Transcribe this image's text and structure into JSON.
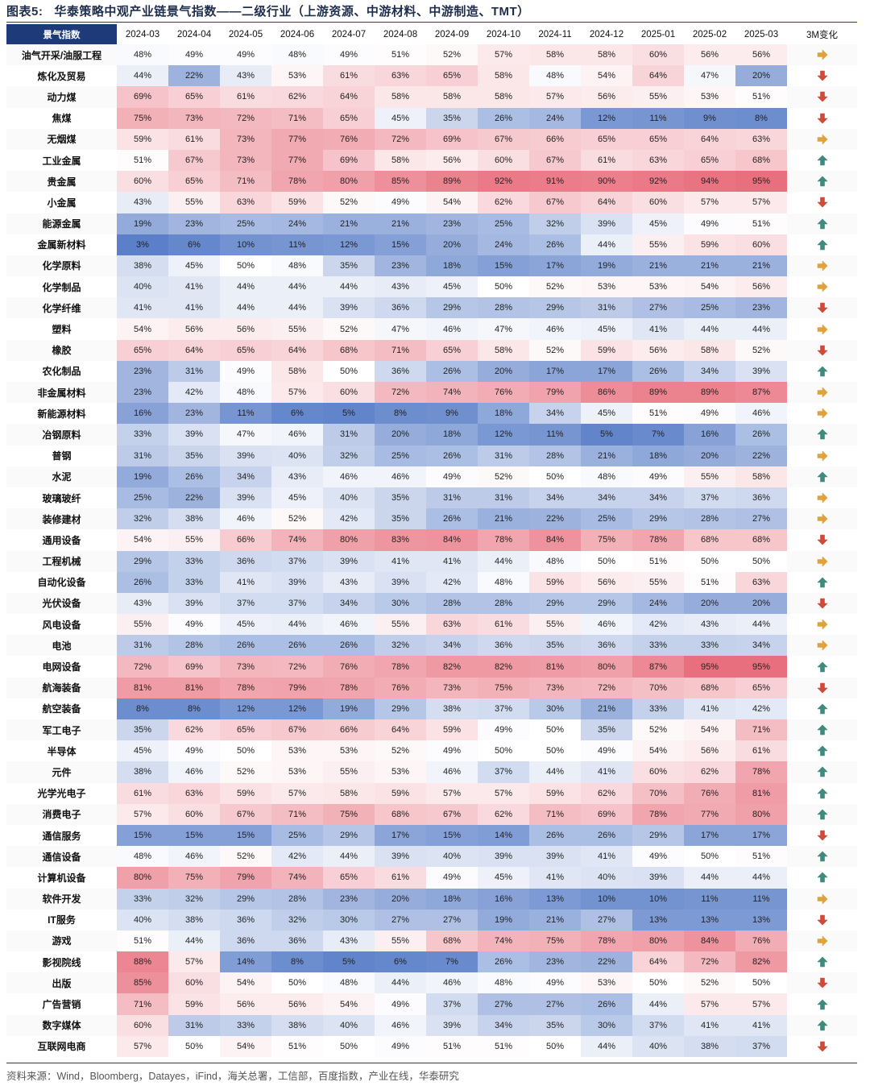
{
  "title": {
    "label": "图表5:",
    "text": "华泰策略中观产业链景气指数——二级行业（上游资源、中游材料、中游制造、TMT）"
  },
  "table": {
    "corner": "景气指数",
    "months": [
      "2024-03",
      "2024-04",
      "2024-05",
      "2024-06",
      "2024-07",
      "2024-08",
      "2024-09",
      "2024-10",
      "2024-11",
      "2024-12",
      "2025-01",
      "2025-02",
      "2025-03"
    ],
    "change_header": "3M变化",
    "colors": {
      "low": "#5b7fc8",
      "mid": "#ffffff",
      "high": "#e8707e",
      "up": "#3f8a7d",
      "down": "#cf4a38",
      "flat": "#e0a33a"
    },
    "rows": [
      {
        "name": "油气开采/油服工程",
        "values": [
          48,
          49,
          49,
          48,
          49,
          51,
          52,
          57,
          58,
          58,
          60,
          56,
          56
        ],
        "trend": "flat"
      },
      {
        "name": "炼化及贸易",
        "values": [
          44,
          22,
          43,
          53,
          61,
          63,
          65,
          58,
          48,
          54,
          64,
          47,
          20
        ],
        "trend": "down"
      },
      {
        "name": "动力煤",
        "values": [
          69,
          65,
          61,
          62,
          64,
          58,
          58,
          58,
          57,
          56,
          55,
          53,
          51
        ],
        "trend": "down"
      },
      {
        "name": "焦煤",
        "values": [
          75,
          73,
          72,
          71,
          65,
          45,
          35,
          26,
          24,
          12,
          11,
          9,
          8
        ],
        "trend": "down"
      },
      {
        "name": "无烟煤",
        "values": [
          59,
          61,
          73,
          77,
          76,
          72,
          69,
          67,
          66,
          65,
          65,
          64,
          63
        ],
        "trend": "flat"
      },
      {
        "name": "工业金属",
        "values": [
          51,
          67,
          73,
          77,
          69,
          58,
          56,
          60,
          67,
          61,
          63,
          65,
          68
        ],
        "trend": "up"
      },
      {
        "name": "贵金属",
        "values": [
          60,
          65,
          71,
          78,
          80,
          85,
          89,
          92,
          91,
          90,
          92,
          94,
          95
        ],
        "trend": "up"
      },
      {
        "name": "小金属",
        "values": [
          43,
          55,
          63,
          59,
          52,
          49,
          54,
          62,
          67,
          64,
          60,
          57,
          57
        ],
        "trend": "down"
      },
      {
        "name": "能源金属",
        "values": [
          19,
          23,
          25,
          24,
          21,
          21,
          23,
          25,
          32,
          39,
          45,
          49,
          51
        ],
        "trend": "up"
      },
      {
        "name": "金属新材料",
        "values": [
          3,
          6,
          10,
          11,
          12,
          15,
          20,
          24,
          26,
          44,
          55,
          59,
          60
        ],
        "trend": "up"
      },
      {
        "name": "化学原料",
        "values": [
          38,
          45,
          50,
          48,
          35,
          23,
          18,
          15,
          17,
          19,
          21,
          21,
          21
        ],
        "trend": "flat"
      },
      {
        "name": "化学制品",
        "values": [
          40,
          41,
          44,
          44,
          44,
          43,
          45,
          50,
          52,
          53,
          53,
          54,
          56
        ],
        "trend": "flat"
      },
      {
        "name": "化学纤维",
        "values": [
          41,
          41,
          44,
          44,
          39,
          36,
          29,
          28,
          29,
          31,
          27,
          25,
          23
        ],
        "trend": "down"
      },
      {
        "name": "塑料",
        "values": [
          54,
          56,
          56,
          55,
          52,
          47,
          46,
          47,
          46,
          45,
          41,
          44,
          44
        ],
        "trend": "flat"
      },
      {
        "name": "橡胶",
        "values": [
          65,
          64,
          65,
          64,
          68,
          71,
          65,
          58,
          52,
          59,
          56,
          58,
          52
        ],
        "trend": "down"
      },
      {
        "name": "农化制品",
        "values": [
          23,
          31,
          49,
          58,
          50,
          36,
          26,
          20,
          17,
          17,
          26,
          34,
          39
        ],
        "trend": "up"
      },
      {
        "name": "非金属材料",
        "values": [
          23,
          42,
          48,
          57,
          60,
          72,
          74,
          76,
          79,
          86,
          89,
          89,
          87
        ],
        "trend": "flat"
      },
      {
        "name": "新能源材料",
        "values": [
          16,
          23,
          11,
          6,
          5,
          8,
          9,
          18,
          34,
          45,
          51,
          49,
          46
        ],
        "trend": "flat"
      },
      {
        "name": "冶钢原料",
        "values": [
          33,
          39,
          47,
          46,
          31,
          20,
          18,
          12,
          11,
          5,
          7,
          16,
          26
        ],
        "trend": "up"
      },
      {
        "name": "普钢",
        "values": [
          31,
          35,
          39,
          40,
          32,
          25,
          26,
          31,
          28,
          21,
          18,
          20,
          22
        ],
        "trend": "flat"
      },
      {
        "name": "水泥",
        "values": [
          19,
          26,
          34,
          43,
          46,
          46,
          49,
          52,
          50,
          48,
          49,
          55,
          58
        ],
        "trend": "up"
      },
      {
        "name": "玻璃玻纤",
        "values": [
          25,
          22,
          39,
          45,
          40,
          35,
          31,
          31,
          34,
          34,
          34,
          37,
          36
        ],
        "trend": "flat"
      },
      {
        "name": "装修建材",
        "values": [
          32,
          38,
          46,
          52,
          42,
          35,
          26,
          21,
          22,
          25,
          29,
          28,
          27
        ],
        "trend": "flat"
      },
      {
        "name": "通用设备",
        "values": [
          54,
          55,
          66,
          74,
          80,
          83,
          84,
          78,
          84,
          75,
          78,
          68,
          68
        ],
        "trend": "down"
      },
      {
        "name": "工程机械",
        "values": [
          29,
          33,
          36,
          37,
          39,
          41,
          41,
          44,
          48,
          50,
          51,
          50,
          50
        ],
        "trend": "flat"
      },
      {
        "name": "自动化设备",
        "values": [
          26,
          33,
          41,
          39,
          43,
          39,
          42,
          48,
          59,
          56,
          55,
          51,
          63
        ],
        "trend": "up"
      },
      {
        "name": "光伏设备",
        "values": [
          43,
          39,
          37,
          37,
          34,
          30,
          28,
          28,
          29,
          29,
          24,
          20,
          20
        ],
        "trend": "down"
      },
      {
        "name": "风电设备",
        "values": [
          55,
          49,
          45,
          44,
          46,
          55,
          63,
          61,
          55,
          46,
          42,
          43,
          44
        ],
        "trend": "flat"
      },
      {
        "name": "电池",
        "values": [
          31,
          28,
          26,
          26,
          26,
          32,
          34,
          36,
          35,
          36,
          33,
          33,
          34
        ],
        "trend": "flat"
      },
      {
        "name": "电网设备",
        "values": [
          72,
          69,
          73,
          72,
          76,
          78,
          82,
          82,
          81,
          80,
          87,
          95,
          95
        ],
        "trend": "up"
      },
      {
        "name": "航海装备",
        "values": [
          81,
          81,
          78,
          79,
          78,
          76,
          73,
          75,
          73,
          72,
          70,
          68,
          65
        ],
        "trend": "down"
      },
      {
        "name": "航空装备",
        "values": [
          8,
          8,
          12,
          12,
          19,
          29,
          38,
          37,
          30,
          21,
          33,
          41,
          42
        ],
        "trend": "up"
      },
      {
        "name": "军工电子",
        "values": [
          35,
          62,
          65,
          67,
          66,
          64,
          59,
          49,
          50,
          35,
          52,
          54,
          71
        ],
        "trend": "up"
      },
      {
        "name": "半导体",
        "values": [
          45,
          49,
          50,
          53,
          53,
          52,
          49,
          50,
          50,
          49,
          54,
          56,
          61
        ],
        "trend": "up"
      },
      {
        "name": "元件",
        "values": [
          38,
          46,
          52,
          53,
          55,
          53,
          46,
          37,
          44,
          41,
          60,
          62,
          78
        ],
        "trend": "up"
      },
      {
        "name": "光学光电子",
        "values": [
          61,
          63,
          59,
          57,
          58,
          59,
          57,
          57,
          59,
          62,
          70,
          76,
          81
        ],
        "trend": "up"
      },
      {
        "name": "消费电子",
        "values": [
          57,
          60,
          67,
          71,
          75,
          68,
          67,
          62,
          71,
          69,
          78,
          77,
          80
        ],
        "trend": "up"
      },
      {
        "name": "通信服务",
        "values": [
          15,
          15,
          15,
          25,
          29,
          17,
          15,
          14,
          26,
          26,
          29,
          17,
          17
        ],
        "trend": "down"
      },
      {
        "name": "通信设备",
        "values": [
          48,
          46,
          52,
          42,
          44,
          39,
          40,
          39,
          39,
          41,
          49,
          50,
          51
        ],
        "trend": "up"
      },
      {
        "name": "计算机设备",
        "values": [
          80,
          75,
          79,
          74,
          65,
          61,
          49,
          45,
          41,
          40,
          39,
          44,
          44
        ],
        "trend": "up"
      },
      {
        "name": "软件开发",
        "values": [
          33,
          32,
          29,
          28,
          23,
          20,
          18,
          16,
          13,
          10,
          10,
          11,
          11
        ],
        "trend": "flat"
      },
      {
        "name": "IT服务",
        "values": [
          40,
          38,
          36,
          32,
          30,
          27,
          27,
          19,
          21,
          27,
          13,
          13,
          13
        ],
        "trend": "down"
      },
      {
        "name": "游戏",
        "values": [
          51,
          44,
          36,
          36,
          43,
          55,
          68,
          74,
          75,
          78,
          80,
          84,
          76
        ],
        "trend": "flat"
      },
      {
        "name": "影视院线",
        "values": [
          88,
          57,
          14,
          8,
          5,
          6,
          7,
          26,
          23,
          22,
          64,
          72,
          82
        ],
        "trend": "up"
      },
      {
        "name": "出版",
        "values": [
          85,
          60,
          54,
          50,
          48,
          44,
          46,
          48,
          49,
          53,
          50,
          52,
          50
        ],
        "trend": "down"
      },
      {
        "name": "广告营销",
        "values": [
          71,
          59,
          56,
          56,
          54,
          49,
          37,
          27,
          27,
          26,
          44,
          57,
          57
        ],
        "trend": "up"
      },
      {
        "name": "数字媒体",
        "values": [
          60,
          31,
          33,
          38,
          40,
          46,
          39,
          34,
          35,
          30,
          37,
          41,
          41
        ],
        "trend": "up"
      },
      {
        "name": "互联网电商",
        "values": [
          57,
          50,
          54,
          51,
          50,
          49,
          51,
          51,
          50,
          44,
          40,
          38,
          37
        ],
        "trend": "down"
      }
    ]
  },
  "source": "资料来源：Wind，Bloomberg，Datayes，iFind，海关总署，工信部，百度指数，产业在线，华泰研究"
}
